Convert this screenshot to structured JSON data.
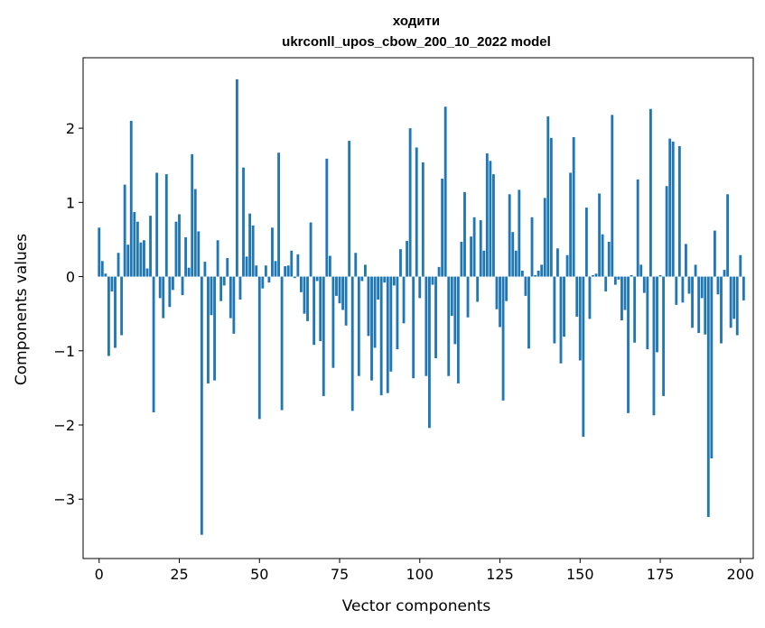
{
  "chart_data": {
    "type": "bar",
    "title": "ходити",
    "subtitle": "ukrconll_upos_cbow_200_10_2022 model",
    "xlabel": "Vector components",
    "ylabel": "Components values",
    "xlim": [
      -5,
      204
    ],
    "ylim": [
      -3.8,
      2.95
    ],
    "xticks": [
      0,
      25,
      50,
      75,
      100,
      125,
      150,
      175,
      200
    ],
    "yticks": [
      -3,
      -2,
      -1,
      0,
      1,
      2
    ],
    "ytick_labels": [
      "−3",
      "−2",
      "−1",
      "0",
      "1",
      "2"
    ],
    "bar_color": "#1f77b4",
    "grid": false,
    "values": [
      0.66,
      0.21,
      0.04,
      -1.07,
      -0.2,
      -0.96,
      0.32,
      -0.79,
      1.24,
      0.43,
      2.1,
      0.87,
      0.74,
      0.46,
      0.49,
      0.11,
      0.82,
      -1.83,
      1.4,
      -0.29,
      -0.56,
      1.38,
      -0.41,
      -0.18,
      0.74,
      0.84,
      -0.25,
      0.53,
      0.12,
      1.65,
      1.18,
      0.61,
      -3.48,
      0.2,
      -1.44,
      -0.52,
      -1.4,
      0.49,
      -0.33,
      -0.12,
      0.25,
      -0.56,
      -0.77,
      2.66,
      -0.31,
      1.47,
      0.27,
      0.85,
      0.69,
      0.15,
      -1.92,
      -0.16,
      0.15,
      -0.08,
      0.66,
      0.21,
      1.67,
      -1.8,
      0.14,
      0.15,
      0.35,
      -0.02,
      0.3,
      -0.21,
      -0.5,
      -0.6,
      0.73,
      -0.92,
      -0.06,
      -0.87,
      -1.61,
      1.59,
      0.28,
      -1.23,
      -0.26,
      -0.36,
      -0.45,
      -0.66,
      1.83,
      -1.81,
      0.32,
      -1.34,
      -0.06,
      0.16,
      -0.8,
      -1.4,
      -0.96,
      -0.31,
      -1.6,
      -0.08,
      -1.57,
      -1.28,
      -0.12,
      -0.98,
      0.37,
      -0.63,
      0.48,
      2.0,
      -1.37,
      1.74,
      -0.29,
      1.54,
      -1.34,
      -2.04,
      -0.11,
      -1.1,
      0.13,
      1.32,
      2.29,
      -1.34,
      -0.53,
      -0.91,
      -1.44,
      0.47,
      1.14,
      -0.55,
      0.54,
      0.8,
      -0.34,
      0.76,
      0.35,
      1.66,
      1.56,
      1.38,
      -0.44,
      -0.68,
      -1.67,
      -0.33,
      1.11,
      0.6,
      0.35,
      1.17,
      0.08,
      -0.26,
      -0.97,
      0.8,
      0.02,
      0.08,
      0.16,
      1.06,
      2.16,
      1.87,
      -0.9,
      0.38,
      -1.17,
      -0.81,
      0.29,
      1.4,
      1.88,
      -0.54,
      -1.13,
      -2.16,
      0.93,
      -0.57,
      0.02,
      0.04,
      1.12,
      0.57,
      -0.2,
      0.47,
      2.18,
      -0.11,
      -0.04,
      -0.59,
      -0.45,
      -1.84,
      0.02,
      -0.89,
      1.31,
      0.16,
      -0.22,
      -0.98,
      2.26,
      -1.87,
      -1.02,
      0.02,
      -1.61,
      1.22,
      1.86,
      1.82,
      -0.38,
      1.76,
      -0.35,
      0.44,
      -0.23,
      -0.69,
      0.16,
      -0.76,
      -0.29,
      -0.78,
      -3.24,
      -2.45,
      0.62,
      -0.24,
      -0.9,
      0.09,
      1.11,
      -0.69,
      -0.57,
      -0.79,
      0.29,
      -0.32
    ]
  }
}
